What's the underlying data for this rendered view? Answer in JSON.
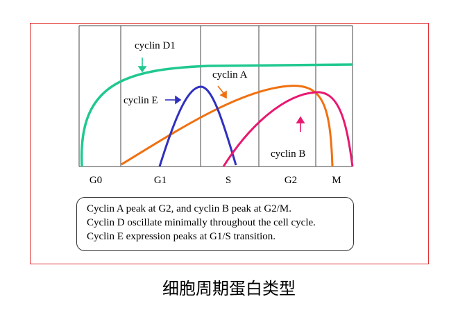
{
  "phases": [
    "G0",
    "G1",
    "S",
    "G2",
    "M"
  ],
  "curves": {
    "cyclin_d1": {
      "label": "cyclin D1",
      "color": "#20c890"
    },
    "cyclin_e": {
      "label": "cyclin E",
      "color": "#3030c0"
    },
    "cyclin_a": {
      "label": "cyclin A",
      "color": "#f07010"
    },
    "cyclin_b": {
      "label": "cyclin B",
      "color": "#e81870"
    }
  },
  "notes": [
    "Cyclin A peak at G2, and cyclin B peak at G2/M.",
    "Cyclin D oscillate minimally throughout the cell cycle.",
    "Cyclin E expression peaks at G1/S transition."
  ],
  "caption": "细胞周期蛋白类型"
}
